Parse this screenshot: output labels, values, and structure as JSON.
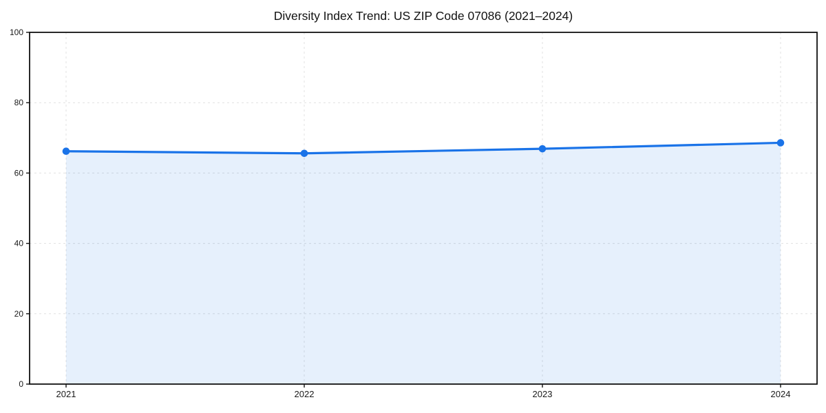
{
  "chart_data": {
    "type": "line",
    "title": "Diversity Index Trend: US ZIP Code 07086 (2021–2024)",
    "x": [
      "2021",
      "2022",
      "2023",
      "2024"
    ],
    "series": [
      {
        "name": "Diversity Index",
        "values": [
          66.2,
          65.6,
          66.9,
          68.6
        ]
      }
    ],
    "xlabel": "",
    "ylabel": "",
    "ylim": [
      0,
      100
    ],
    "yticks": [
      0,
      20,
      40,
      60,
      80,
      100
    ],
    "grid": true,
    "grid_style": "dashed",
    "legend": false,
    "area": true,
    "marker": "circle",
    "layout_hint": "single line series with filled area below, full box frame, dashed gridlines at every x and y tick"
  },
  "colors": {
    "line": "#1a73e8",
    "marker": "#1a73e8",
    "area_fill": "rgba(26,115,232,0.11)",
    "grid": "#e0e0e0",
    "spine": "#111111",
    "tick_mark": "#111111",
    "tick_label": "#1a1a1a",
    "title": "#111111",
    "background": "#ffffff"
  }
}
